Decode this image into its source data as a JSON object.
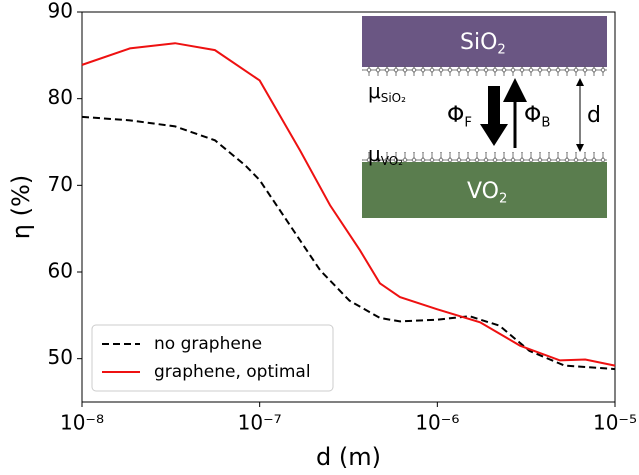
{
  "chart_data": {
    "type": "line",
    "xlabel": "d (m)",
    "ylabel": "η (%)",
    "xscale": "log",
    "xlim": [
      1e-08,
      1e-05
    ],
    "xticks": [
      {
        "value": 1e-08,
        "label": "10⁻⁸"
      },
      {
        "value": 1e-07,
        "label": "10⁻⁷"
      },
      {
        "value": 1e-06,
        "label": "10⁻⁶"
      },
      {
        "value": 1e-05,
        "label": "10⁻⁵"
      }
    ],
    "ylim": [
      45,
      90
    ],
    "yticks": [
      50,
      60,
      70,
      80,
      90
    ],
    "legend": "lower left",
    "series": [
      {
        "name": "no graphene",
        "color": "#000000",
        "linestyle": "dashed",
        "x": [
          1e-08,
          1.86e-08,
          3.34e-08,
          5.6e-08,
          8.3e-08,
          1e-07,
          1.48e-07,
          2.19e-07,
          3.2e-07,
          4.75e-07,
          6.16e-07,
          1e-06,
          1.52e-06,
          2.24e-06,
          3.3e-06,
          5.2e-06,
          1e-05
        ],
        "values": [
          77.9,
          77.5,
          76.8,
          75.2,
          72.3,
          70.6,
          65.4,
          60.2,
          56.7,
          54.7,
          54.3,
          54.5,
          54.9,
          53.8,
          50.9,
          49.2,
          48.8
        ]
      },
      {
        "name": "graphene, optimal",
        "color": "#ee1111",
        "linestyle": "solid",
        "x": [
          1e-08,
          1.86e-08,
          3.34e-08,
          5.6e-08,
          1e-07,
          1.69e-07,
          2.49e-07,
          3.67e-07,
          4.75e-07,
          6.16e-07,
          1e-06,
          1.74e-06,
          2.92e-06,
          4.9e-06,
          6.8e-06,
          1e-05
        ],
        "values": [
          83.9,
          85.8,
          86.4,
          85.6,
          82.1,
          74.0,
          67.7,
          62.5,
          58.7,
          57.1,
          55.7,
          54.2,
          51.5,
          49.8,
          49.9,
          49.2
        ]
      }
    ],
    "inset_labels": [
      {
        "text": "SiO",
        "sub": "2"
      },
      {
        "text": "μ",
        "sub": "SiO₂"
      },
      {
        "text": "Φ",
        "sub": "F"
      },
      {
        "text": "Φ",
        "sub": "B"
      },
      {
        "text": "d"
      },
      {
        "text": "μ",
        "sub": "VO₂"
      },
      {
        "text": "VO",
        "sub": "2"
      }
    ]
  }
}
